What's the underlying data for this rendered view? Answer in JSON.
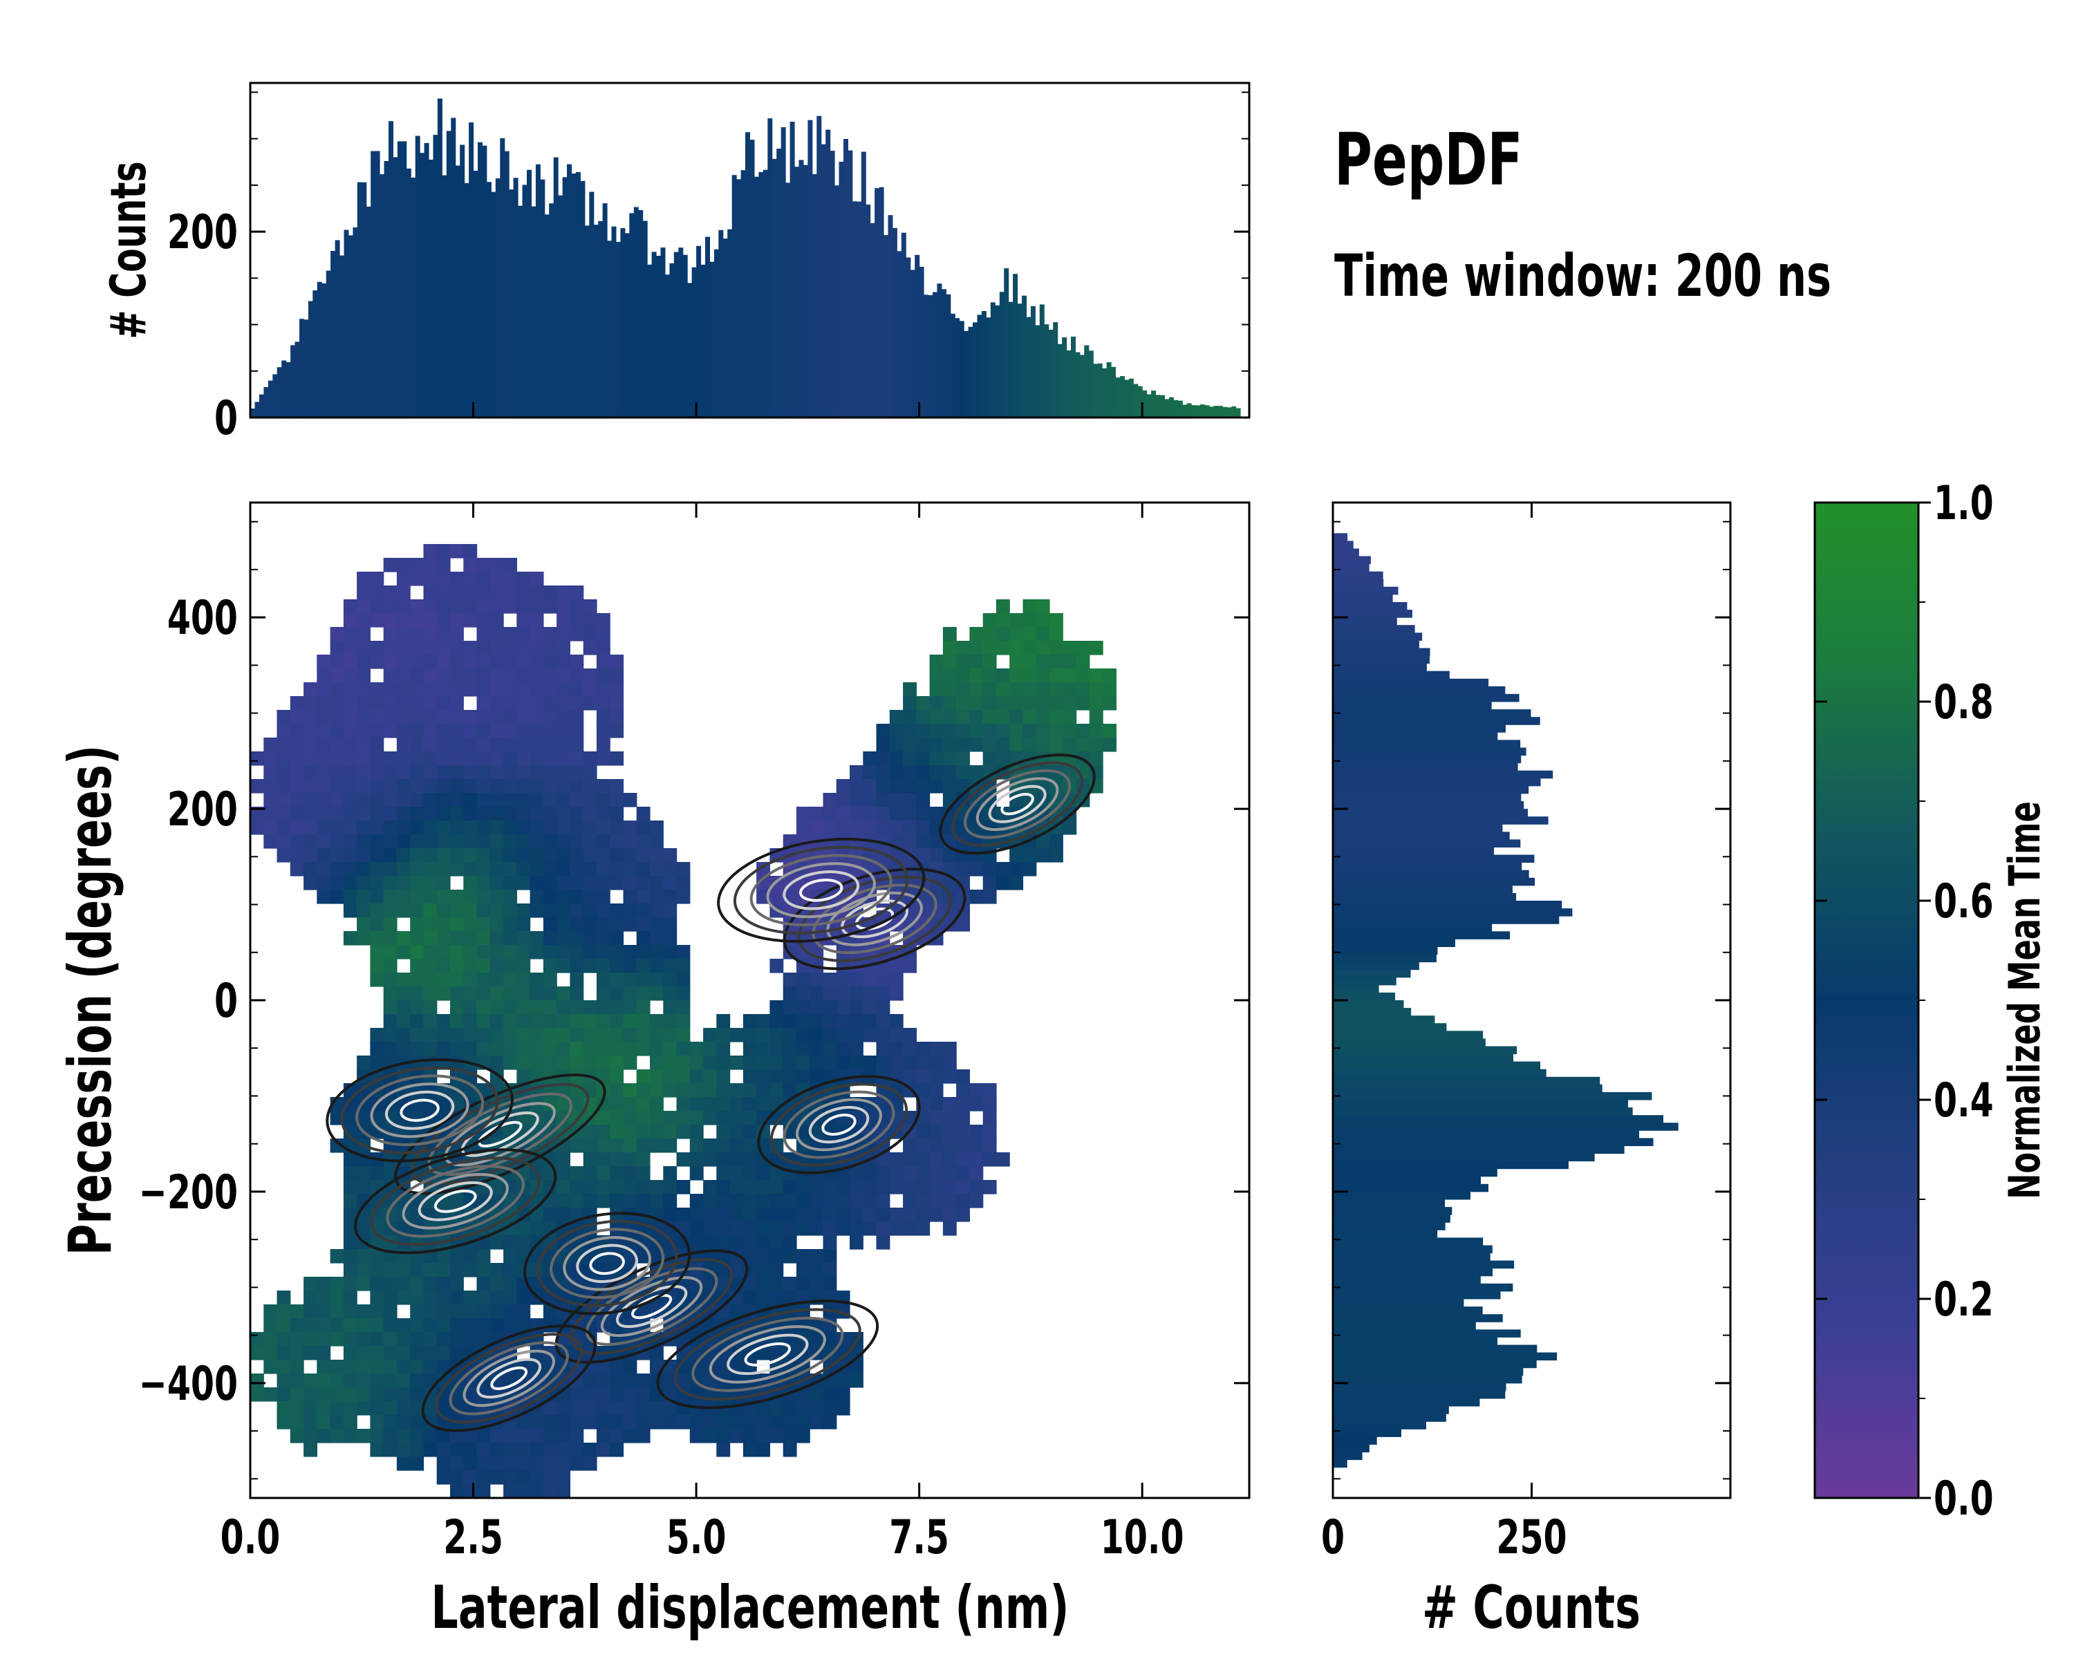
{
  "title": "PepDF",
  "subtitle": "Time window: 200 ns",
  "chart_data": [
    {
      "id": "joint",
      "type": "heatmap",
      "description": "2D histogram colored by normalized mean time with density contours",
      "xlabel": "Lateral displacement (nm)",
      "ylabel": "Precession (degrees)",
      "xlim": [
        0,
        11.2
      ],
      "ylim": [
        -520,
        520
      ],
      "xticks": [
        0,
        2.5,
        5,
        7.5,
        10
      ],
      "xtick_labels": [
        "0.0",
        "2.5",
        "5.0",
        "7.5",
        "10.0"
      ],
      "yticks": [
        -400,
        -200,
        0,
        200,
        400
      ],
      "ytick_labels": [
        "−400",
        "−200",
        "0",
        "200",
        "400"
      ],
      "clusters": [
        {
          "x": 2.0,
          "y": 380,
          "t": 0.18
        },
        {
          "x": 1.0,
          "y": 220,
          "t": 0.2
        },
        {
          "x": 3.2,
          "y": 330,
          "t": 0.22
        },
        {
          "x": 6.8,
          "y": 120,
          "t": 0.15
        },
        {
          "x": 8.2,
          "y": 220,
          "t": 0.55
        },
        {
          "x": 8.7,
          "y": 320,
          "t": 0.85
        },
        {
          "x": 2.2,
          "y": 100,
          "t": 0.85
        },
        {
          "x": 3.8,
          "y": 120,
          "t": 0.35
        },
        {
          "x": 2.0,
          "y": -120,
          "t": 0.5
        },
        {
          "x": 3.8,
          "y": -60,
          "t": 0.8
        },
        {
          "x": 6.2,
          "y": -110,
          "t": 0.6
        },
        {
          "x": 7.5,
          "y": -150,
          "t": 0.3
        },
        {
          "x": 2.5,
          "y": -220,
          "t": 0.62
        },
        {
          "x": 4.5,
          "y": -310,
          "t": 0.45
        },
        {
          "x": 5.8,
          "y": -380,
          "t": 0.5
        },
        {
          "x": 1.0,
          "y": -380,
          "t": 0.68
        },
        {
          "x": 3.0,
          "y": -440,
          "t": 0.42
        }
      ],
      "density_peaks": [
        {
          "x": 8.6,
          "y": 205
        },
        {
          "x": 7.0,
          "y": 85
        },
        {
          "x": 6.4,
          "y": 115
        },
        {
          "x": 2.8,
          "y": -140
        },
        {
          "x": 6.6,
          "y": -130
        },
        {
          "x": 1.9,
          "y": -115
        },
        {
          "x": 4.5,
          "y": -320
        },
        {
          "x": 5.8,
          "y": -370
        },
        {
          "x": 4.0,
          "y": -275
        },
        {
          "x": 2.9,
          "y": -395
        },
        {
          "x": 2.3,
          "y": -210
        }
      ]
    },
    {
      "id": "top_hist",
      "type": "bar",
      "description": "Marginal histogram of lateral displacement",
      "xlim": [
        0,
        11.2
      ],
      "ylabel": "# Counts",
      "ylim": [
        0,
        360
      ],
      "yticks": [
        0,
        200
      ],
      "ytick_labels": [
        "0",
        "200"
      ],
      "bin_width": 0.05,
      "profile": [
        {
          "x": 0.0,
          "count": 5
        },
        {
          "x": 0.5,
          "count": 80
        },
        {
          "x": 1.0,
          "count": 180
        },
        {
          "x": 1.5,
          "count": 280
        },
        {
          "x": 2.0,
          "count": 310
        },
        {
          "x": 2.5,
          "count": 280
        },
        {
          "x": 3.0,
          "count": 265
        },
        {
          "x": 3.5,
          "count": 245
        },
        {
          "x": 4.0,
          "count": 215
        },
        {
          "x": 4.5,
          "count": 190
        },
        {
          "x": 4.9,
          "count": 160
        },
        {
          "x": 5.3,
          "count": 200
        },
        {
          "x": 5.6,
          "count": 290
        },
        {
          "x": 6.0,
          "count": 280
        },
        {
          "x": 6.5,
          "count": 290
        },
        {
          "x": 7.0,
          "count": 240
        },
        {
          "x": 7.5,
          "count": 150
        },
        {
          "x": 8.0,
          "count": 100
        },
        {
          "x": 8.5,
          "count": 145
        },
        {
          "x": 9.0,
          "count": 95
        },
        {
          "x": 9.5,
          "count": 60
        },
        {
          "x": 10.0,
          "count": 30
        },
        {
          "x": 10.5,
          "count": 15
        },
        {
          "x": 11.1,
          "count": 10
        }
      ]
    },
    {
      "id": "right_hist",
      "type": "bar",
      "description": "Marginal histogram of precession (horizontal bars)",
      "xlabel": "# Counts",
      "xlim": [
        0,
        500
      ],
      "xticks": [
        0,
        250
      ],
      "xtick_labels": [
        "0",
        "250"
      ],
      "ylim": [
        -520,
        520
      ],
      "bin_width": 8,
      "profile": [
        {
          "y": 490,
          "count": 15
        },
        {
          "y": 420,
          "count": 80
        },
        {
          "y": 350,
          "count": 120
        },
        {
          "y": 330,
          "count": 200
        },
        {
          "y": 280,
          "count": 240
        },
        {
          "y": 220,
          "count": 250
        },
        {
          "y": 150,
          "count": 230
        },
        {
          "y": 90,
          "count": 280
        },
        {
          "y": 40,
          "count": 110
        },
        {
          "y": 10,
          "count": 60
        },
        {
          "y": -20,
          "count": 120
        },
        {
          "y": -60,
          "count": 250
        },
        {
          "y": -100,
          "count": 380
        },
        {
          "y": -120,
          "count": 440
        },
        {
          "y": -160,
          "count": 320
        },
        {
          "y": -200,
          "count": 160
        },
        {
          "y": -240,
          "count": 140
        },
        {
          "y": -280,
          "count": 230
        },
        {
          "y": -320,
          "count": 170
        },
        {
          "y": -380,
          "count": 270
        },
        {
          "y": -420,
          "count": 180
        },
        {
          "y": -460,
          "count": 60
        },
        {
          "y": -490,
          "count": 10
        }
      ]
    },
    {
      "id": "colorbar",
      "type": "colorbar",
      "label": "Normalized Mean Time",
      "range": [
        0,
        1
      ],
      "ticks": [
        0,
        0.2,
        0.4,
        0.6,
        0.8,
        1.0
      ],
      "tick_labels": [
        "0.0",
        "0.2",
        "0.4",
        "0.6",
        "0.8",
        "1.0"
      ],
      "colors": [
        "#6a3a9c",
        "#3b3f94",
        "#243f82",
        "#073a6c",
        "#12585e",
        "#1b7a3f",
        "#22902a"
      ]
    }
  ]
}
